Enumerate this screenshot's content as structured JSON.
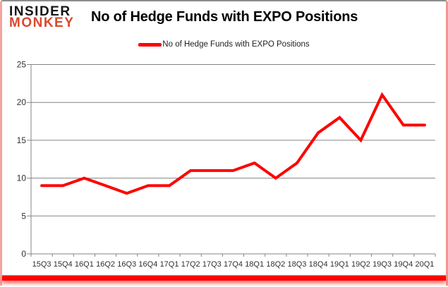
{
  "logo": {
    "line1": "INSIDER",
    "line2": "MONKEY"
  },
  "header": {
    "title": "No of Hedge Funds with EXPO Positions"
  },
  "legend": {
    "label": "No of Hedge Funds with EXPO Positions"
  },
  "chart_data": {
    "type": "line",
    "title": "No of Hedge Funds with EXPO Positions",
    "categories": [
      "15Q3",
      "15Q4",
      "16Q1",
      "16Q2",
      "16Q3",
      "16Q4",
      "17Q1",
      "17Q2",
      "17Q3",
      "17Q4",
      "18Q1",
      "18Q2",
      "18Q3",
      "18Q4",
      "19Q1",
      "19Q2",
      "19Q3",
      "19Q4",
      "20Q1"
    ],
    "series": [
      {
        "name": "No of Hedge Funds with EXPO Positions",
        "values": [
          9,
          9,
          10,
          9,
          8,
          9,
          9,
          11,
          11,
          11,
          12,
          10,
          12,
          16,
          18,
          15,
          21,
          17,
          17
        ]
      }
    ],
    "ylim": [
      0,
      25
    ],
    "yticks": [
      0,
      5,
      10,
      15,
      20,
      25
    ],
    "xlabel": "",
    "ylabel": "",
    "grid": "horizontal",
    "legend_position": "top-center",
    "colors": {
      "line": "#ff0000",
      "grid": "#848484",
      "axis": "#848484",
      "tick_label": "#303030"
    }
  },
  "theme": {
    "logo_black": "#151515",
    "logo_red": "#d8492c",
    "accent_red": "#fb0300",
    "border_pink": "#f2a49e",
    "top_border_gray": "#8d8d8d"
  }
}
